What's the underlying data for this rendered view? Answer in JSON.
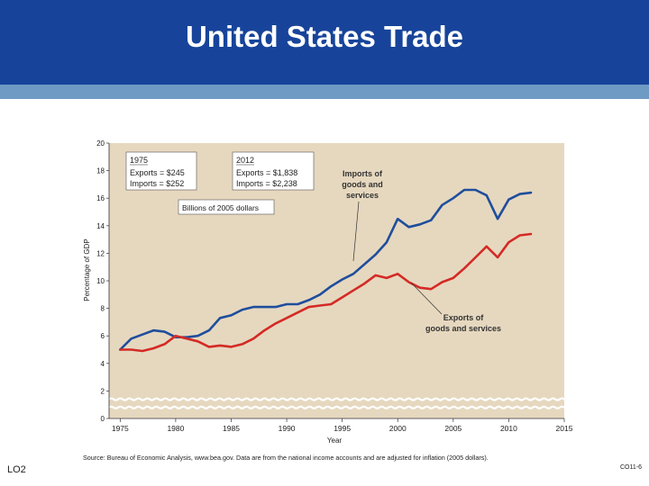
{
  "slide": {
    "title": "United States Trade",
    "footer_left": "LO2",
    "footer_right": "CO11-6"
  },
  "colors": {
    "header": "#17449a",
    "band": "#6f9ac4",
    "plot_bg": "#e6d8bf",
    "imports": "#1f4e9c",
    "exports": "#d42a25"
  },
  "chart_data": {
    "type": "line",
    "title": "",
    "xlabel": "Year",
    "ylabel": "Percentage of GDP",
    "xlim": [
      1974,
      2015
    ],
    "ylim": [
      0,
      20
    ],
    "x_ticks": [
      "1975",
      "1980",
      "1985",
      "1990",
      "1995",
      "2000",
      "2005",
      "2010",
      "2015"
    ],
    "y_ticks": [
      "0",
      "2",
      "4",
      "6",
      "8",
      "10",
      "12",
      "14",
      "16",
      "18",
      "20"
    ],
    "grid": false,
    "series": [
      {
        "name": "Imports of goods and services",
        "color": "#1f4e9c",
        "x": [
          1975,
          1976,
          1977,
          1978,
          1979,
          1980,
          1981,
          1982,
          1983,
          1984,
          1985,
          1986,
          1987,
          1988,
          1989,
          1990,
          1991,
          1992,
          1993,
          1994,
          1995,
          1996,
          1997,
          1998,
          1999,
          2000,
          2001,
          2002,
          2003,
          2004,
          2005,
          2006,
          2007,
          2008,
          2009,
          2010,
          2011,
          2012
        ],
        "y": [
          5.0,
          5.8,
          6.1,
          6.4,
          6.3,
          5.9,
          5.9,
          6.0,
          6.4,
          7.3,
          7.5,
          7.9,
          8.1,
          8.1,
          8.1,
          8.3,
          8.3,
          8.6,
          9.0,
          9.6,
          10.1,
          10.5,
          11.2,
          11.9,
          12.8,
          14.5,
          13.9,
          14.1,
          14.4,
          15.5,
          16.0,
          16.6,
          16.6,
          16.2,
          14.5,
          15.9,
          16.3,
          16.4
        ]
      },
      {
        "name": "Exports of goods and services",
        "color": "#d42a25",
        "x": [
          1975,
          1976,
          1977,
          1978,
          1979,
          1980,
          1981,
          1982,
          1983,
          1984,
          1985,
          1986,
          1987,
          1988,
          1989,
          1990,
          1991,
          1992,
          1993,
          1994,
          1995,
          1996,
          1997,
          1998,
          1999,
          2000,
          2001,
          2002,
          2003,
          2004,
          2005,
          2006,
          2007,
          2008,
          2009,
          2010,
          2011,
          2012
        ],
        "y": [
          5.0,
          5.0,
          4.9,
          5.1,
          5.4,
          6.0,
          5.8,
          5.6,
          5.2,
          5.3,
          5.2,
          5.4,
          5.8,
          6.4,
          6.9,
          7.3,
          7.7,
          8.1,
          8.2,
          8.3,
          8.8,
          9.3,
          9.8,
          10.4,
          10.2,
          10.5,
          9.9,
          9.5,
          9.4,
          9.9,
          10.2,
          10.9,
          11.7,
          12.5,
          11.7,
          12.8,
          13.3,
          13.4
        ]
      }
    ],
    "annotations": {
      "box_1975_title": "1975",
      "box_1975_exports": "Exports = $245",
      "box_1975_imports": "Imports = $252",
      "box_2012_title": "2012",
      "box_2012_exports": "Exports = $1,838",
      "box_2012_imports": "Imports = $2,238",
      "units_box": "Billions of 2005 dollars",
      "imports_label_1": "Imports of",
      "imports_label_2": "goods and",
      "imports_label_3": "services",
      "exports_label_1": "Exports of",
      "exports_label_2": "goods and services"
    },
    "source": "Source: Bureau of Economic Analysis, www.bea.gov. Data are from the national income accounts and are adjusted for inflation (2005 dollars)."
  }
}
